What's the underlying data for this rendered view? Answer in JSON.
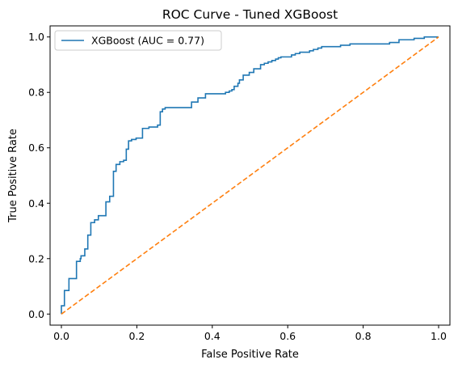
{
  "chart_data": {
    "type": "line",
    "title": "ROC Curve - Tuned XGBoost",
    "xlabel": "False Positive Rate",
    "ylabel": "True Positive Rate",
    "xlim": [
      -0.03,
      1.03
    ],
    "ylim": [
      -0.04,
      1.04
    ],
    "x_ticks": [
      "0.0",
      "0.2",
      "0.4",
      "0.6",
      "0.8",
      "1.0"
    ],
    "y_ticks": [
      "0.0",
      "0.2",
      "0.4",
      "0.6",
      "0.8",
      "1.0"
    ],
    "grid": false,
    "legend_position": "top-left",
    "series": [
      {
        "name": "XGBoost (AUC = 0.77)",
        "color": "#1f77b4",
        "style": "solid",
        "step": true,
        "x": [
          0.0,
          0.0,
          0.008,
          0.008,
          0.02,
          0.02,
          0.04,
          0.04,
          0.05,
          0.05,
          0.052,
          0.052,
          0.062,
          0.062,
          0.07,
          0.07,
          0.078,
          0.078,
          0.088,
          0.088,
          0.098,
          0.098,
          0.118,
          0.118,
          0.128,
          0.128,
          0.138,
          0.138,
          0.145,
          0.145,
          0.155,
          0.155,
          0.165,
          0.165,
          0.172,
          0.172,
          0.178,
          0.178,
          0.186,
          0.186,
          0.198,
          0.198,
          0.215,
          0.215,
          0.232,
          0.232,
          0.255,
          0.255,
          0.262,
          0.262,
          0.268,
          0.268,
          0.275,
          0.275,
          0.345,
          0.345,
          0.362,
          0.362,
          0.382,
          0.382,
          0.435,
          0.435,
          0.445,
          0.445,
          0.452,
          0.452,
          0.458,
          0.458,
          0.468,
          0.468,
          0.472,
          0.472,
          0.482,
          0.482,
          0.498,
          0.498,
          0.51,
          0.51,
          0.528,
          0.528,
          0.538,
          0.538,
          0.548,
          0.548,
          0.558,
          0.558,
          0.568,
          0.568,
          0.575,
          0.575,
          0.582,
          0.582,
          0.61,
          0.61,
          0.62,
          0.62,
          0.632,
          0.632,
          0.658,
          0.658,
          0.668,
          0.668,
          0.68,
          0.68,
          0.69,
          0.69,
          0.74,
          0.74,
          0.765,
          0.765,
          0.87,
          0.87,
          0.895,
          0.895,
          0.935,
          0.935,
          0.962,
          0.962,
          1.0
        ],
        "y": [
          0.0,
          0.03,
          0.03,
          0.085,
          0.085,
          0.128,
          0.128,
          0.19,
          0.19,
          0.2,
          0.2,
          0.21,
          0.21,
          0.235,
          0.235,
          0.285,
          0.285,
          0.33,
          0.33,
          0.34,
          0.34,
          0.355,
          0.355,
          0.405,
          0.405,
          0.425,
          0.425,
          0.515,
          0.515,
          0.54,
          0.54,
          0.55,
          0.55,
          0.555,
          0.555,
          0.595,
          0.595,
          0.625,
          0.625,
          0.63,
          0.63,
          0.635,
          0.635,
          0.67,
          0.67,
          0.675,
          0.675,
          0.682,
          0.682,
          0.73,
          0.73,
          0.74,
          0.74,
          0.745,
          0.745,
          0.765,
          0.765,
          0.78,
          0.78,
          0.795,
          0.795,
          0.8,
          0.8,
          0.805,
          0.805,
          0.81,
          0.81,
          0.822,
          0.822,
          0.833,
          0.833,
          0.845,
          0.845,
          0.862,
          0.862,
          0.872,
          0.872,
          0.885,
          0.885,
          0.9,
          0.9,
          0.905,
          0.905,
          0.91,
          0.91,
          0.915,
          0.915,
          0.92,
          0.92,
          0.925,
          0.925,
          0.928,
          0.928,
          0.935,
          0.935,
          0.94,
          0.94,
          0.945,
          0.945,
          0.95,
          0.95,
          0.955,
          0.955,
          0.96,
          0.96,
          0.965,
          0.965,
          0.97,
          0.97,
          0.975,
          0.975,
          0.98,
          0.98,
          0.99,
          0.99,
          0.995,
          0.995,
          1.0,
          1.0
        ]
      },
      {
        "name": "",
        "color": "#ff7f0e",
        "style": "dashed",
        "x": [
          0.0,
          1.0
        ],
        "y": [
          0.0,
          1.0
        ]
      }
    ]
  }
}
